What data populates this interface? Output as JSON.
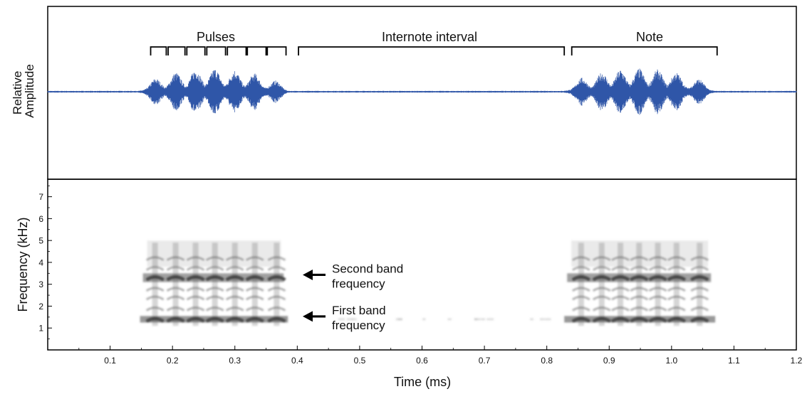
{
  "chart_data": [
    {
      "type": "waveform",
      "ylabel": "Relative Amplitude",
      "xlim": [
        0,
        1.2
      ],
      "color": "#2f56a8",
      "annotations": {
        "pulses_label": "Pulses",
        "internote_label": "Internote interval",
        "note_label": "Note",
        "pulse_brackets": [
          [
            0.165,
            0.19
          ],
          [
            0.193,
            0.22
          ],
          [
            0.223,
            0.252
          ],
          [
            0.255,
            0.285
          ],
          [
            0.288,
            0.318
          ],
          [
            0.32,
            0.35
          ],
          [
            0.352,
            0.382
          ]
        ],
        "internote_bracket": [
          0.402,
          0.828
        ],
        "note_bracket": [
          0.84,
          1.073
        ]
      },
      "notes": [
        {
          "start": 0.14,
          "end": 0.39,
          "pulse_centers": [
            0.172,
            0.205,
            0.237,
            0.268,
            0.3,
            0.332,
            0.367
          ]
        },
        {
          "start": 0.82,
          "end": 1.075,
          "pulse_centers": [
            0.855,
            0.888,
            0.918,
            0.948,
            0.978,
            1.008,
            1.045
          ]
        }
      ]
    },
    {
      "type": "spectrogram",
      "xlabel": "Time (ms)",
      "ylabel": "Frequency (kHz)",
      "xlim": [
        0,
        1.2
      ],
      "ylim": [
        0,
        7.8
      ],
      "x_ticks": [
        "0.1",
        "0.2",
        "0.3",
        "0.4",
        "0.5",
        "0.6",
        "0.7",
        "0.8",
        "0.9",
        "1.0",
        "1.1",
        "1.2"
      ],
      "y_ticks": [
        "1",
        "2",
        "3",
        "4",
        "5",
        "6",
        "7"
      ],
      "first_band_khz": 1.4,
      "second_band_khz": 3.3,
      "annotations": [
        {
          "text_lines": [
            "Second band",
            "frequency"
          ],
          "target_khz": 3.3
        },
        {
          "text_lines": [
            "First band",
            "frequency"
          ],
          "target_khz": 1.4
        }
      ]
    }
  ]
}
